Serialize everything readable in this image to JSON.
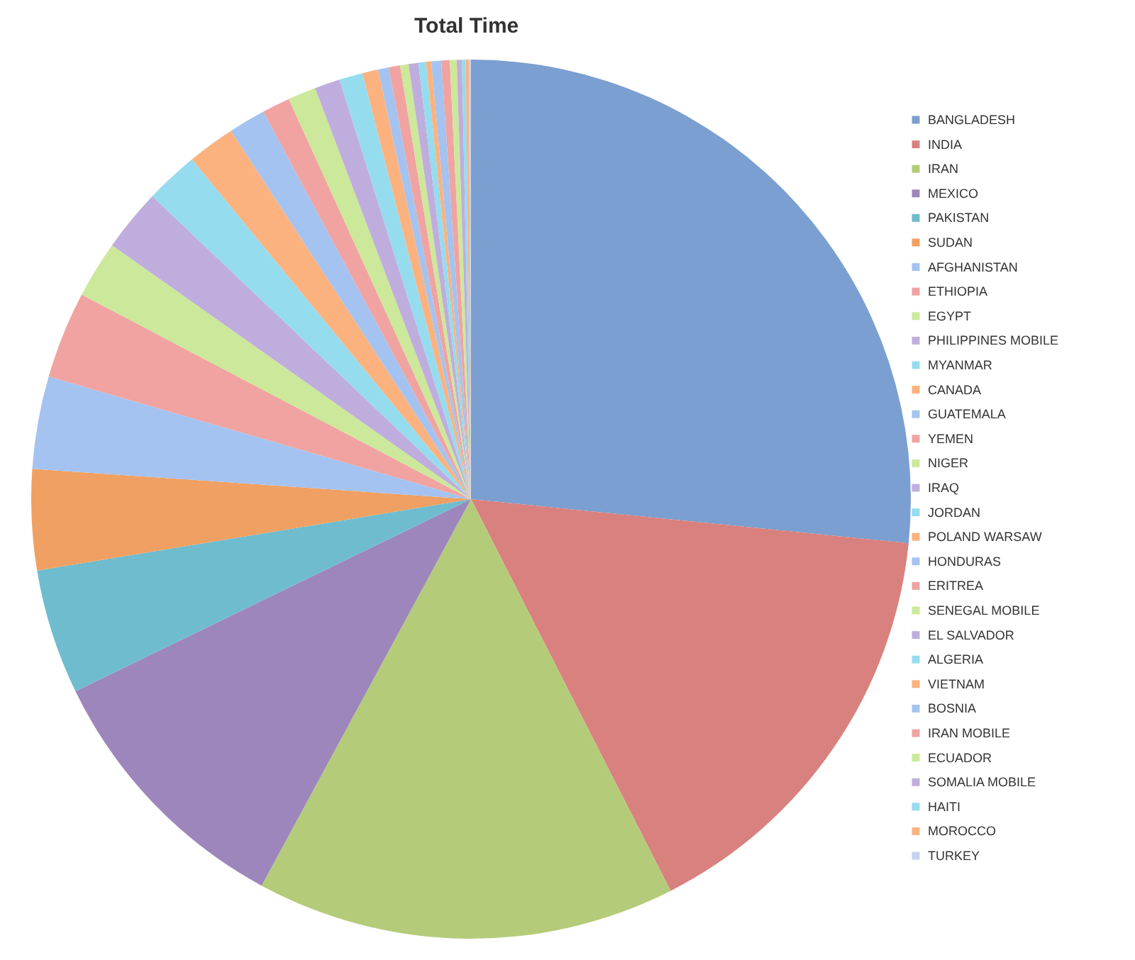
{
  "chart_data": {
    "type": "pie",
    "title": "Total Time",
    "legend": "right",
    "categories": [
      "BANGLADESH",
      "INDIA",
      "IRAN",
      "MEXICO",
      "PAKISTAN",
      "SUDAN",
      "AFGHANISTAN",
      "ETHIOPIA",
      "EGYPT",
      "PHILIPPINES MOBILE",
      "MYANMAR",
      "CANADA",
      "GUATEMALA",
      "YEMEN",
      "NIGER",
      "IRAQ",
      "JORDAN",
      "POLAND WARSAW",
      "HONDURAS",
      "ERITREA",
      "SENEGAL MOBILE",
      "EL SALVADOR",
      "ALGERIA",
      "VIETNAM",
      "BOSNIA",
      "IRAN MOBILE",
      "ECUADOR",
      "SOMALIA MOBILE",
      "HAITI",
      "MOROCCO",
      "TURKEY"
    ],
    "values": [
      26.6,
      15.9,
      15.4,
      9.9,
      4.6,
      3.7,
      3.4,
      3.2,
      2.1,
      2.3,
      1.96,
      1.75,
      1.36,
      1.03,
      1.03,
      0.94,
      0.86,
      0.58,
      0.39,
      0.42,
      0.31,
      0.36,
      0.28,
      0.19,
      0.36,
      0.31,
      0.25,
      0.19,
      0.14,
      0.11,
      0.08
    ],
    "colors": [
      "#7b9fd0",
      "#d9817e",
      "#b4cc7a",
      "#9d86bb",
      "#6fbccf",
      "#f0a062",
      "#a4c3f0",
      "#f0a3a1",
      "#cce89a",
      "#bfaedd",
      "#95dcef",
      "#fbb27f",
      "#a4c3f0",
      "#f0a3a1",
      "#cce89a",
      "#bfaedd",
      "#95dcef",
      "#fbb27f",
      "#a4c3f0",
      "#f0a3a1",
      "#cce89a",
      "#bfaedd",
      "#95dcef",
      "#fbb27f",
      "#a4c3f0",
      "#f0a3a1",
      "#cce89a",
      "#bfaedd",
      "#95dcef",
      "#fbb27f",
      "#c4d3ee"
    ]
  }
}
